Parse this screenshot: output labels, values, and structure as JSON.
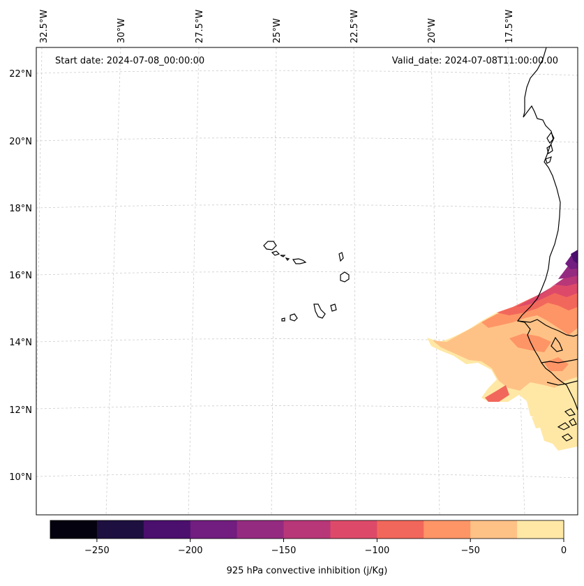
{
  "map": {
    "start_label": "Start date: 2024-07-08_00:00:00",
    "valid_label": "Valid_date: 2024-07-08T11:00:00.00",
    "lon_labels": [
      "32.5°W",
      "30°W",
      "27.5°W",
      "25°W",
      "22.5°W",
      "20°W",
      "17.5°W"
    ],
    "lat_labels": [
      "22°N",
      "20°N",
      "18°N",
      "16°N",
      "14°N",
      "12°N",
      "10°N"
    ]
  },
  "colorbar": {
    "label": "925 hPa convective inhibition (j/Kg)",
    "tick_labels": [
      "−250",
      "−200",
      "−150",
      "−100",
      "−50",
      "0"
    ],
    "colors": [
      "#04020e",
      "#1d1040",
      "#4b0f6e",
      "#721d80",
      "#952b80",
      "#b83778",
      "#dd4a69",
      "#f2675b",
      "#fe9566",
      "#ffc286",
      "#ffe8a6"
    ]
  },
  "colors": {
    "coast": "#000000",
    "grid": "#cccccc"
  }
}
